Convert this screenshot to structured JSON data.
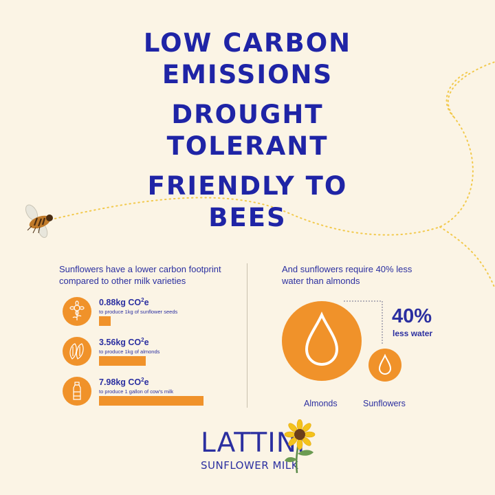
{
  "headlines": [
    "LOW CARBON EMISSIONS",
    "DROUGHT TOLERANT",
    "FRIENDLY TO BEES"
  ],
  "carbon": {
    "intro": "Sunflowers have a lower carbon footprint compared to other milk varieties",
    "items": [
      {
        "value": "0.88kg CO",
        "sup": "2",
        "unit": "e",
        "desc": "to produce 1kg of sunflower seeds",
        "icon": "sunflower-icon",
        "amount_kg": 0.88
      },
      {
        "value": "3.56kg CO",
        "sup": "2",
        "unit": "e",
        "desc": "to produce 1kg of almonds",
        "icon": "almond-icon",
        "amount_kg": 3.56
      },
      {
        "value": "7.98kg CO",
        "sup": "2",
        "unit": "e",
        "desc": "to produce 1 gallon of cow's milk",
        "icon": "milk-bottle-icon",
        "amount_kg": 7.98
      }
    ]
  },
  "water": {
    "intro": "And sunflowers require 40% less water than almonds",
    "percent": "40%",
    "percent_label": "less water",
    "almonds_label": "Almonds",
    "sunflowers_label": "Sunflowers"
  },
  "brand": {
    "name": "LATTINI",
    "tagline": "SUNFLOWER MILK"
  },
  "colors": {
    "background": "#fbf4e5",
    "accent": "#f0922a",
    "text": "#2b2fa0",
    "dots": "#f2c94c"
  }
}
